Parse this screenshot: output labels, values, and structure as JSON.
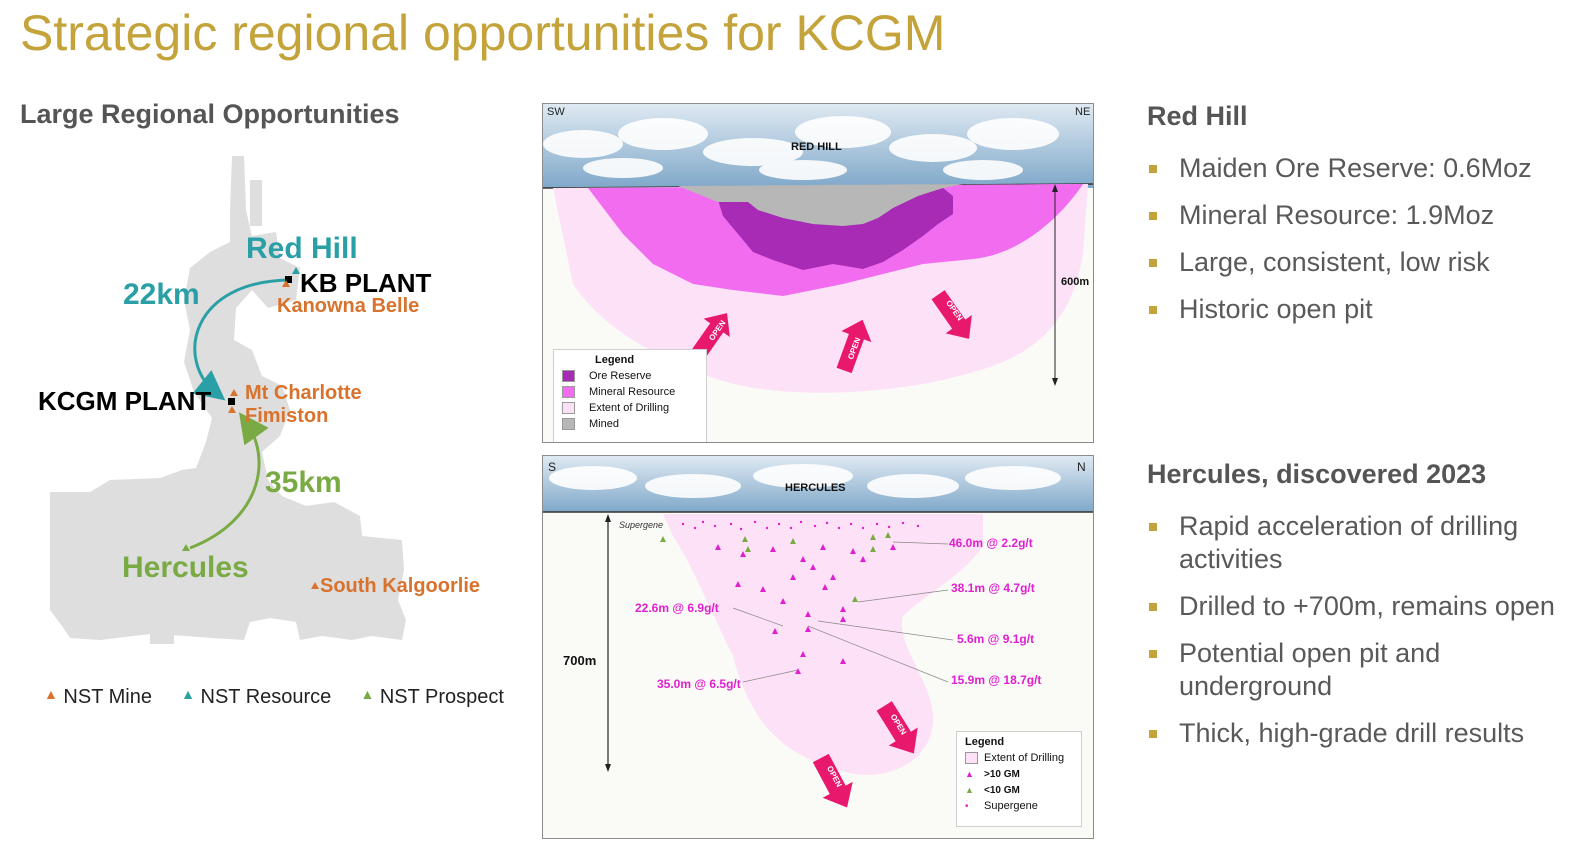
{
  "title": "Strategic regional opportunities for KCGM",
  "left_heading": "Large Regional Opportunities",
  "map": {
    "labels": {
      "red_hill": "Red Hill",
      "kb_plant": "KB PLANT",
      "kanowna_belle": "Kanowna Belle",
      "kcgm_plant": "KCGM PLANT",
      "mt_charlotte": "Mt Charlotte",
      "fimiston": "Fimiston",
      "hercules": "Hercules",
      "south_kalgoorlie": "South Kalgoorlie",
      "dist_22": "22km",
      "dist_35": "35km"
    },
    "legend": {
      "mine": "NST Mine",
      "resource": "NST Resource",
      "prospect": "NST Prospect"
    },
    "colors": {
      "mine": "#d8722c",
      "resource": "#2aa0a6",
      "prospect": "#7aaa44",
      "land": "#dedede"
    }
  },
  "redhill_section": {
    "sw": "SW",
    "ne": "NE",
    "title": "RED HILL",
    "depth": "600m",
    "open": "OPEN",
    "legend_title": "Legend",
    "legend": [
      "Ore Reserve",
      "Mineral Resource",
      "Extent of Drilling",
      "Mined"
    ],
    "colors": {
      "ore_reserve": "#a72bb5",
      "mineral_resource": "#f26cf0",
      "extent": "#fde1f7",
      "mined": "#b7b7b7"
    }
  },
  "hercules_section": {
    "s": "S",
    "n": "N",
    "title": "HERCULES",
    "depth": "700m",
    "supergene": "Supergene",
    "intercepts": [
      "46.0m @ 2.2g/t",
      "38.1m @ 4.7g/t",
      "22.6m @ 6.9g/t",
      "5.6m @ 9.1g/t",
      "35.0m @ 6.5g/t",
      "15.9m @ 18.7g/t"
    ],
    "open": "OPEN",
    "legend_title": "Legend",
    "legend": [
      "Extent of Drilling",
      ">10 GM",
      "<10 GM",
      "Supergene"
    ]
  },
  "red_hill": {
    "heading": "Red Hill",
    "bullets": [
      "Maiden Ore Reserve: 0.6Moz",
      "Mineral Resource: 1.9Moz",
      "Large, consistent, low risk",
      "Historic open pit"
    ]
  },
  "hercules": {
    "heading": "Hercules, discovered 2023",
    "bullets": [
      "Rapid acceleration of drilling activities",
      "Drilled to +700m, remains open",
      "Potential open pit and underground",
      "Thick, high-grade drill results"
    ]
  },
  "bullet_color": "#c4a33b"
}
